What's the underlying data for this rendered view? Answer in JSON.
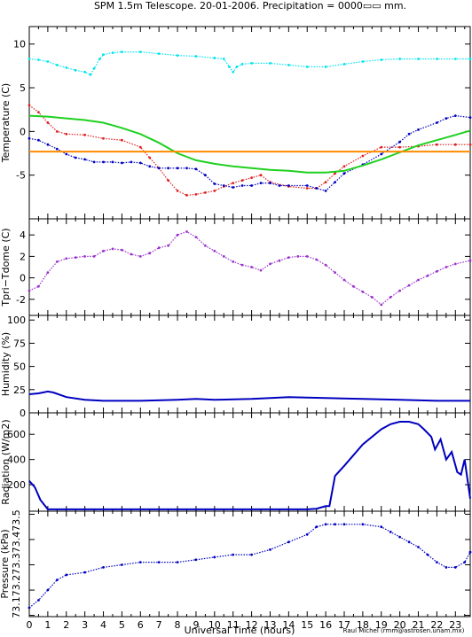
{
  "figure": {
    "title": "SPM 1.5m Telescope. 20-01-2006. Precipitation = 0000▭▭ mm.",
    "xlabel": "Universal Time (hours)",
    "credit": "Raul Michel (rmm@astrosen.unam.mx)"
  },
  "chart_data": [
    {
      "type": "line",
      "panel": "temperature",
      "ylabel": "Temperature (C)",
      "xlim": [
        0,
        23.8
      ],
      "ylim": [
        -10,
        12
      ],
      "yticks": [
        -5,
        0,
        5,
        10
      ],
      "series": [
        {
          "color": "#00e5ee",
          "style": "dots",
          "x": [
            0,
            0.5,
            1,
            1.5,
            2,
            2.5,
            3,
            3.3,
            3.5,
            3.8,
            4,
            4.5,
            5,
            6,
            7,
            8,
            9,
            10,
            10.5,
            10.8,
            11,
            11.2,
            11.5,
            12,
            13,
            14,
            15,
            16,
            17,
            18,
            19,
            20,
            21,
            22,
            23,
            23.8
          ],
          "y": [
            8.3,
            8.2,
            8.0,
            7.6,
            7.3,
            7.0,
            6.8,
            6.5,
            7.2,
            8.3,
            8.8,
            9.0,
            9.1,
            9.1,
            8.9,
            8.7,
            8.6,
            8.4,
            8.3,
            7.4,
            6.8,
            7.4,
            7.7,
            7.8,
            7.8,
            7.6,
            7.4,
            7.4,
            7.7,
            8.0,
            8.2,
            8.3,
            8.3,
            8.3,
            8.3,
            8.3
          ]
        },
        {
          "color": "#e02020",
          "style": "dots",
          "x": [
            0,
            0.5,
            1,
            1.5,
            2,
            3,
            4,
            5,
            6,
            6.5,
            7,
            7.5,
            8,
            8.5,
            9,
            9.5,
            10,
            10.5,
            11,
            11.5,
            12,
            12.5,
            13,
            14,
            15,
            15.5,
            16,
            16.5,
            17,
            18,
            19,
            20,
            21,
            22,
            23,
            23.8
          ],
          "y": [
            3.0,
            2.2,
            1.0,
            0,
            -0.3,
            -0.4,
            -0.8,
            -1.0,
            -1.8,
            -3.0,
            -4.2,
            -5.6,
            -6.8,
            -7.3,
            -7.2,
            -7.0,
            -6.8,
            -6.3,
            -5.9,
            -5.6,
            -5.3,
            -5.0,
            -5.8,
            -6.3,
            -6.5,
            -6.5,
            -5.8,
            -4.8,
            -4.0,
            -2.8,
            -1.8,
            -1.8,
            -1.7,
            -1.5,
            -1.5,
            -1.5
          ]
        },
        {
          "color": "#0000c0",
          "style": "dots",
          "x": [
            0,
            0.5,
            1,
            1.5,
            2,
            2.5,
            3,
            3.5,
            4,
            4.5,
            5,
            5.5,
            6,
            6.5,
            7,
            7.5,
            8,
            8.5,
            9,
            9.5,
            10,
            10.5,
            11,
            11.5,
            12,
            12.5,
            13,
            13.5,
            14,
            15,
            15.5,
            16,
            16.5,
            17,
            18,
            19,
            20,
            20.5,
            21,
            22,
            22.5,
            23,
            23.8
          ],
          "y": [
            -0.8,
            -1.0,
            -1.5,
            -2.0,
            -2.6,
            -3.0,
            -3.2,
            -3.5,
            -3.5,
            -3.5,
            -3.6,
            -3.5,
            -3.6,
            -4.0,
            -4.2,
            -4.2,
            -4.2,
            -4.2,
            -4.3,
            -5.0,
            -6.0,
            -6.2,
            -6.4,
            -6.2,
            -6.2,
            -5.9,
            -5.9,
            -6.2,
            -6.2,
            -6.2,
            -6.5,
            -6.8,
            -5.8,
            -4.8,
            -3.8,
            -2.6,
            -1.2,
            -0.3,
            0.2,
            1.0,
            1.5,
            1.8,
            1.6
          ]
        },
        {
          "color": "#20d020",
          "style": "line",
          "x": [
            0,
            1,
            2,
            3,
            4,
            5,
            6,
            7,
            8,
            9,
            10,
            11,
            12,
            13,
            14,
            15,
            16,
            17,
            18,
            19,
            20,
            21,
            22,
            23,
            23.8
          ],
          "y": [
            1.8,
            1.7,
            1.5,
            1.3,
            1.0,
            0.4,
            -0.3,
            -1.3,
            -2.5,
            -3.3,
            -3.7,
            -4.0,
            -4.2,
            -4.4,
            -4.5,
            -4.7,
            -4.7,
            -4.5,
            -3.9,
            -3.2,
            -2.4,
            -1.6,
            -1.0,
            -0.4,
            0.1
          ]
        },
        {
          "color": "#ff8c00",
          "style": "line",
          "x": [
            0,
            23.8
          ],
          "y": [
            -2.3,
            -2.3
          ]
        }
      ]
    },
    {
      "type": "scatter",
      "panel": "tpri-tdome",
      "ylabel": "Tpri−Tdome (C)",
      "xlim": [
        0,
        23.8
      ],
      "ylim": [
        -3.5,
        5.5
      ],
      "yticks": [
        -2,
        0,
        2,
        4
      ],
      "series": [
        {
          "color": "#9932cc",
          "x": [
            0,
            0.5,
            1,
            1.5,
            2,
            2.5,
            3,
            3.5,
            4,
            4.5,
            5,
            5.5,
            6,
            6.5,
            7,
            7.5,
            8,
            8.5,
            9,
            9.5,
            10,
            10.5,
            11,
            11.5,
            12,
            12.5,
            13,
            13.5,
            14,
            14.5,
            15,
            15.5,
            16,
            16.5,
            17,
            17.5,
            18,
            18.5,
            19,
            19.5,
            20,
            20.5,
            21,
            21.5,
            22,
            22.5,
            23,
            23.8
          ],
          "y": [
            -1.2,
            -0.8,
            0.5,
            1.5,
            1.8,
            1.9,
            2.0,
            2.0,
            2.5,
            2.7,
            2.6,
            2.2,
            2.0,
            2.3,
            2.8,
            3.0,
            4.0,
            4.3,
            3.8,
            3.0,
            2.5,
            2.0,
            1.5,
            1.2,
            1.0,
            0.7,
            1.3,
            1.6,
            1.9,
            2.0,
            2.0,
            1.7,
            1.2,
            0.5,
            -0.2,
            -0.8,
            -1.3,
            -1.8,
            -2.5,
            -1.8,
            -1.2,
            -0.7,
            -0.2,
            0.2,
            0.6,
            1.0,
            1.3,
            1.6
          ]
        }
      ]
    },
    {
      "type": "line",
      "panel": "humidity",
      "ylabel": "Humidity (%)",
      "xlim": [
        0,
        23.8
      ],
      "ylim": [
        0,
        105
      ],
      "yticks": [
        0,
        25,
        50,
        75,
        100
      ],
      "series": [
        {
          "color": "#0000c0",
          "x": [
            0,
            0.5,
            1,
            1.3,
            2,
            3,
            4,
            6,
            8,
            9,
            10,
            12,
            14,
            16,
            18,
            20,
            22,
            23.8
          ],
          "y": [
            20,
            21,
            23,
            22,
            17,
            14,
            13,
            13,
            14,
            15,
            14,
            15,
            17,
            16,
            15,
            14,
            13,
            13
          ]
        }
      ]
    },
    {
      "type": "line",
      "panel": "radiation",
      "ylabel": "Radiation (W/m2)",
      "xlim": [
        0,
        23.8
      ],
      "ylim": [
        -10,
        770
      ],
      "yticks": [
        200,
        400,
        600
      ],
      "series": [
        {
          "color": "#0000c0",
          "x": [
            0,
            0.3,
            0.6,
            1,
            2,
            4,
            6,
            8,
            10,
            12,
            14,
            15,
            15.5,
            16,
            16.2,
            16.5,
            17,
            18,
            19,
            19.5,
            20,
            20.5,
            21,
            21.3,
            21.7,
            21.9,
            22.2,
            22.5,
            22.8,
            23.1,
            23.3,
            23.5,
            23.8
          ],
          "y": [
            230,
            180,
            80,
            5,
            5,
            5,
            5,
            5,
            5,
            5,
            5,
            5,
            10,
            30,
            30,
            270,
            350,
            520,
            640,
            680,
            700,
            700,
            680,
            640,
            580,
            480,
            560,
            400,
            460,
            300,
            280,
            400,
            90
          ]
        }
      ]
    },
    {
      "type": "scatter",
      "panel": "pressure",
      "ylabel": "Pressure (kPa)",
      "tick_labels": [
        "73.1",
        "73.2",
        "73.3",
        "73.4",
        "73.5"
      ],
      "xlim": [
        0,
        23.8
      ],
      "ylim": [
        73.095,
        73.512
      ],
      "yticks": [
        73.1,
        73.2,
        73.3,
        73.4,
        73.5
      ],
      "series": [
        {
          "color": "#0000c0",
          "x": [
            0,
            0.5,
            1,
            1.5,
            2,
            3,
            4,
            5,
            6,
            7,
            8,
            9,
            10,
            11,
            12,
            13,
            14,
            15,
            15.5,
            16,
            16.5,
            17,
            18,
            19,
            19.5,
            20,
            20.5,
            21,
            21.5,
            22,
            22.5,
            23,
            23.5,
            23.8
          ],
          "y": [
            73.13,
            73.16,
            73.2,
            73.24,
            73.26,
            73.27,
            73.29,
            73.3,
            73.31,
            73.31,
            73.31,
            73.32,
            73.33,
            73.34,
            73.34,
            73.36,
            73.39,
            73.42,
            73.45,
            73.46,
            73.46,
            73.46,
            73.46,
            73.45,
            73.43,
            73.41,
            73.39,
            73.37,
            73.34,
            73.31,
            73.29,
            73.29,
            73.31,
            73.35
          ]
        }
      ]
    }
  ]
}
